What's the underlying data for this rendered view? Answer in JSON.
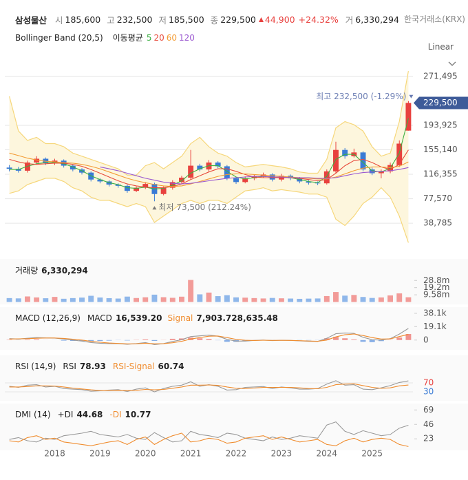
{
  "header": {
    "name": "삼성물산",
    "quote": [
      {
        "label": "시",
        "value": "185,600"
      },
      {
        "label": "고",
        "value": "232,500"
      },
      {
        "label": "저",
        "value": "185,500"
      },
      {
        "label": "종",
        "value": "229,500"
      }
    ],
    "change": "44,900",
    "change_pct": "+24.32%",
    "volume_label": "거",
    "volume": "6,330,294",
    "exchange": "한국거래소(KRX)",
    "scale": "Linear"
  },
  "chart_data": [
    {
      "type": "candlestick",
      "categories": [
        null,
        null,
        null,
        null,
        null,
        "2018",
        null,
        null,
        null,
        null,
        "2019",
        null,
        null,
        null,
        null,
        "2020",
        null,
        null,
        null,
        null,
        "2021",
        null,
        null,
        null,
        null,
        "2022",
        null,
        null,
        null,
        null,
        "2023",
        null,
        null,
        null,
        null,
        "2024",
        null,
        null,
        null,
        null,
        "2025",
        null,
        null,
        null,
        null
      ],
      "open": [
        127000,
        125000,
        122000,
        135000,
        141000,
        134000,
        138000,
        130000,
        124000,
        119000,
        108000,
        105000,
        100000,
        98000,
        90000,
        95000,
        101000,
        85000,
        95000,
        104000,
        111000,
        130000,
        124000,
        135000,
        129000,
        110000,
        104000,
        110000,
        113000,
        116000,
        108000,
        114000,
        110000,
        105000,
        103000,
        102000,
        121000,
        155000,
        145000,
        151000,
        124000,
        118000,
        121000,
        131000,
        185600
      ],
      "high": [
        131000,
        128000,
        138000,
        145000,
        143000,
        141000,
        140000,
        132000,
        126000,
        121000,
        110000,
        107000,
        102000,
        100000,
        97000,
        104000,
        103000,
        97000,
        107000,
        114000,
        155000,
        133000,
        139000,
        137000,
        131000,
        112000,
        113000,
        116000,
        119000,
        118000,
        117000,
        116000,
        112000,
        107000,
        105000,
        124000,
        168000,
        158000,
        157000,
        153000,
        127000,
        124000,
        135000,
        170000,
        232500
      ],
      "low": [
        121000,
        119000,
        119000,
        132000,
        131000,
        131000,
        127000,
        121000,
        116000,
        105000,
        102000,
        97000,
        95000,
        87000,
        88000,
        93000,
        73500,
        83000,
        92000,
        101000,
        108000,
        121000,
        121000,
        126000,
        107000,
        101000,
        102000,
        107000,
        111000,
        105000,
        105000,
        107000,
        102000,
        100000,
        99000,
        100000,
        118000,
        141000,
        143000,
        121000,
        115000,
        110000,
        118000,
        128000,
        185500
      ],
      "close": [
        125000,
        122000,
        135000,
        141000,
        134000,
        138000,
        130000,
        124000,
        119000,
        108000,
        105000,
        100000,
        98000,
        90000,
        95000,
        101000,
        85000,
        95000,
        104000,
        111000,
        130000,
        124000,
        135000,
        129000,
        110000,
        104000,
        110000,
        113000,
        116000,
        108000,
        114000,
        110000,
        105000,
        103000,
        102000,
        121000,
        155000,
        145000,
        151000,
        124000,
        118000,
        121000,
        131000,
        165000,
        229500
      ],
      "up_color": "#e8413e",
      "down_color": "#3a7bd5",
      "bollinger": {
        "name": "Bollinger Band (20,5)",
        "color": "#f6d77b",
        "fill": "#fdf6dd",
        "upper": [
          240000,
          185000,
          170000,
          175000,
          165000,
          165000,
          160000,
          150000,
          145000,
          140000,
          135000,
          130000,
          125000,
          115000,
          115000,
          130000,
          135000,
          125000,
          135000,
          145000,
          165000,
          175000,
          160000,
          150000,
          145000,
          135000,
          128000,
          130000,
          132000,
          130000,
          128000,
          125000,
          120000,
          118000,
          118000,
          140000,
          190000,
          200000,
          195000,
          185000,
          160000,
          145000,
          150000,
          200000,
          280000
        ],
        "lower": [
          86000,
          90000,
          100000,
          105000,
          110000,
          110000,
          105000,
          95000,
          90000,
          80000,
          75000,
          75000,
          70000,
          65000,
          70000,
          65000,
          40000,
          50000,
          60000,
          70000,
          75000,
          70000,
          75000,
          75000,
          70000,
          80000,
          90000,
          92000,
          95000,
          90000,
          92000,
          90000,
          88000,
          85000,
          85000,
          80000,
          45000,
          35000,
          50000,
          70000,
          80000,
          95000,
          80000,
          50000,
          8000
        ]
      },
      "ma_label": "이동평균",
      "series": [
        {
          "name": "5",
          "color": "#3cb043",
          "values": [
            124000,
            124000,
            129000,
            133000,
            135000,
            135000,
            133000,
            128000,
            122000,
            114000,
            108000,
            103000,
            100000,
            95000,
            94000,
            96000,
            93000,
            94000,
            99000,
            106000,
            118000,
            125000,
            130000,
            130000,
            121000,
            112000,
            109000,
            111000,
            113000,
            112000,
            112000,
            111000,
            108000,
            105000,
            103000,
            113000,
            140000,
            148000,
            148000,
            135000,
            122000,
            120000,
            126000,
            150000,
            205000
          ]
        },
        {
          "name": "20",
          "color": "#e84b3c",
          "values": [
            140000,
            136000,
            133000,
            132000,
            133000,
            134000,
            134000,
            132000,
            129000,
            124000,
            118000,
            112000,
            106000,
            101000,
            98000,
            96000,
            95000,
            95000,
            97000,
            101000,
            108000,
            114000,
            120000,
            125000,
            125000,
            121000,
            116000,
            112000,
            111000,
            111000,
            111000,
            111000,
            110000,
            108000,
            106000,
            108000,
            118000,
            130000,
            138000,
            140000,
            135000,
            128000,
            124000,
            132000,
            155000
          ]
        },
        {
          "name": "60",
          "color": "#f39c35",
          "values": [
            150000,
            146000,
            142000,
            139000,
            137000,
            136000,
            135000,
            134000,
            132000,
            129000,
            125000,
            120000,
            115000,
            110000,
            106000,
            103000,
            100000,
            98000,
            97000,
            98000,
            101000,
            105000,
            109000,
            113000,
            116000,
            117000,
            117000,
            116000,
            115000,
            114000,
            113000,
            112000,
            111000,
            110000,
            109000,
            109000,
            112000,
            117000,
            122000,
            126000,
            128000,
            128000,
            127000,
            129000,
            136000
          ]
        },
        {
          "name": "120",
          "color": "#9b59d0",
          "values": [
            null,
            null,
            null,
            null,
            null,
            null,
            null,
            null,
            null,
            null,
            128000,
            125000,
            122000,
            118000,
            114000,
            110000,
            107000,
            104000,
            102000,
            101000,
            102000,
            104000,
            106000,
            108000,
            110000,
            111000,
            112000,
            113000,
            113000,
            112000,
            112000,
            111000,
            111000,
            111000,
            110000,
            110000,
            111000,
            114000,
            117000,
            119000,
            120000,
            121000,
            122000,
            124000,
            127000
          ]
        }
      ],
      "ylim": [
        5000,
        289000
      ],
      "yticks": [
        {
          "value": 38785,
          "label": "38,785"
        },
        {
          "value": 77570,
          "label": "77,570"
        },
        {
          "value": 116355,
          "label": "116,355"
        },
        {
          "value": 155140,
          "label": "155,140"
        },
        {
          "value": 193925,
          "label": "193,925"
        },
        {
          "value": 271495,
          "label": "271,495"
        }
      ],
      "grid": true,
      "last_price_label": "229,500",
      "tag_color": "#3e5b99",
      "annotations": [
        {
          "text": "최고 232,500 (-1.29%)",
          "color": "#6b7db3"
        },
        {
          "text": "최저 73,500 (212.24%)",
          "color": "#777777"
        }
      ]
    },
    {
      "type": "bar",
      "title": "거래량",
      "last_label": "6,330,294",
      "up_color": "#f29b98",
      "down_color": "#8fb7ea",
      "values": [
        5200000,
        4800000,
        7400000,
        6100000,
        5000000,
        6800000,
        4300000,
        5200000,
        5900000,
        8300000,
        6000000,
        5100000,
        4600000,
        7200000,
        5300000,
        6300000,
        9800000,
        6400000,
        5600000,
        7100000,
        29500000,
        10200000,
        12600000,
        7800000,
        9100000,
        6200000,
        5800000,
        5200000,
        4700000,
        5400000,
        4900000,
        4600000,
        4200000,
        4500000,
        4700000,
        7900000,
        13300000,
        8500000,
        9400000,
        6700000,
        5400000,
        6100000,
        8800000,
        11500000,
        6330294
      ],
      "ylim": [
        0,
        35500000
      ],
      "yticks": [
        {
          "value": 9580000,
          "label": "9.58m"
        },
        {
          "value": 19200000,
          "label": "19.2m"
        },
        {
          "value": 28800000,
          "label": "28.8m"
        }
      ],
      "grid": false
    },
    {
      "type": "line",
      "title": "MACD (12,26,9)",
      "series": [
        {
          "name": "MACD",
          "color": "#9a9a9a",
          "last_label": "16,539.20",
          "values": [
            2000,
            1500,
            2500,
            3500,
            3000,
            2800,
            1500,
            0,
            -1500,
            -3500,
            -4500,
            -5000,
            -5000,
            -6000,
            -5000,
            -3500,
            -6500,
            -5000,
            -2000,
            500,
            5000,
            6000,
            7000,
            5500,
            1000,
            -1500,
            -1500,
            -500,
            0,
            -800,
            -300,
            -500,
            -1200,
            -1800,
            -2000,
            2500,
            9000,
            10000,
            9500,
            4000,
            500,
            0,
            2000,
            8500,
            16539.2
          ]
        },
        {
          "name": "Signal",
          "color": "#f08c2e",
          "last_label": "7,903.72",
          "values": [
            1500,
            1700,
            1900,
            2500,
            2900,
            2900,
            2300,
            1200,
            0,
            -1800,
            -3200,
            -4200,
            -4800,
            -5400,
            -5300,
            -4500,
            -5300,
            -5200,
            -3800,
            -1800,
            1500,
            3500,
            5500,
            5800,
            3500,
            1000,
            -300,
            -600,
            -300,
            -500,
            -400,
            -500,
            -900,
            -1400,
            -1800,
            0,
            4500,
            7500,
            8600,
            6500,
            3500,
            1500,
            1700,
            5000,
            7903.72
          ]
        },
        {
          "type": "bar",
          "up_color": "#f0938f",
          "down_color": "#86aee6",
          "last_label": "8,635.48",
          "values": [
            500,
            -200,
            600,
            1000,
            100,
            -100,
            -800,
            -1200,
            -1500,
            -1700,
            -1300,
            -800,
            -200,
            -600,
            300,
            1000,
            -1200,
            200,
            1800,
            2300,
            3500,
            2500,
            1500,
            -300,
            -2500,
            -2500,
            -1200,
            100,
            300,
            -300,
            100,
            0,
            -300,
            -400,
            -200,
            2500,
            4500,
            2500,
            900,
            -2500,
            -3000,
            -1500,
            300,
            3500,
            8635.48
          ]
        }
      ],
      "ylim": [
        -11000,
        40000
      ],
      "yticks": [
        0,
        {
          "value": 19100,
          "label": "19.1k"
        },
        {
          "value": 38100,
          "label": "38.1k"
        }
      ],
      "grid": false
    },
    {
      "type": "line",
      "title": "RSI (14,9)",
      "series": [
        {
          "name": "RSI",
          "color": "#9a9a9a",
          "last_label": "78.93",
          "values": [
            55,
            50,
            60,
            62,
            52,
            55,
            45,
            42,
            40,
            33,
            35,
            38,
            40,
            32,
            42,
            48,
            30,
            45,
            55,
            60,
            75,
            55,
            62,
            55,
            38,
            40,
            50,
            52,
            54,
            45,
            52,
            48,
            42,
            42,
            45,
            65,
            80,
            60,
            62,
            42,
            40,
            48,
            58,
            72,
            78.93
          ]
        },
        {
          "name": "RSI-Signal",
          "color": "#f08c2e",
          "last_label": "60.74",
          "values": [
            52,
            52,
            54,
            57,
            57,
            56,
            52,
            47,
            43,
            39,
            36,
            36,
            37,
            36,
            37,
            41,
            39,
            41,
            46,
            52,
            60,
            60,
            61,
            59,
            52,
            46,
            45,
            47,
            50,
            50,
            50,
            50,
            48,
            45,
            44,
            50,
            62,
            65,
            66,
            58,
            50,
            46,
            48,
            57,
            60.74
          ]
        }
      ],
      "ylim": [
        0,
        100
      ],
      "yticks": [
        30,
        70
      ],
      "tick_colors": [
        "#3a7bd5",
        "#e8413e"
      ],
      "grid": true
    },
    {
      "type": "line",
      "title": "DMI (14)",
      "series": [
        {
          "name": "+DI",
          "color": "#9a9a9a",
          "last_label": "44.68",
          "values": [
            22,
            25,
            20,
            18,
            24,
            22,
            28,
            30,
            32,
            35,
            30,
            28,
            26,
            30,
            24,
            22,
            33,
            25,
            18,
            20,
            35,
            30,
            28,
            25,
            32,
            30,
            24,
            22,
            20,
            26,
            22,
            24,
            28,
            26,
            24,
            45,
            50,
            35,
            30,
            36,
            32,
            28,
            30,
            40,
            44.68
          ]
        },
        {
          "name": "-DI",
          "color": "#f08c2e",
          "last_label": "10.77",
          "values": [
            20,
            18,
            25,
            28,
            22,
            24,
            18,
            16,
            14,
            12,
            15,
            18,
            20,
            14,
            22,
            26,
            14,
            22,
            28,
            32,
            18,
            20,
            24,
            22,
            16,
            18,
            24,
            26,
            28,
            22,
            26,
            22,
            18,
            20,
            22,
            14,
            12,
            20,
            24,
            18,
            22,
            24,
            22,
            14,
            10.77
          ]
        }
      ],
      "ylim": [
        9,
        77
      ],
      "yticks": [
        23,
        46,
        69
      ],
      "grid": false
    }
  ]
}
